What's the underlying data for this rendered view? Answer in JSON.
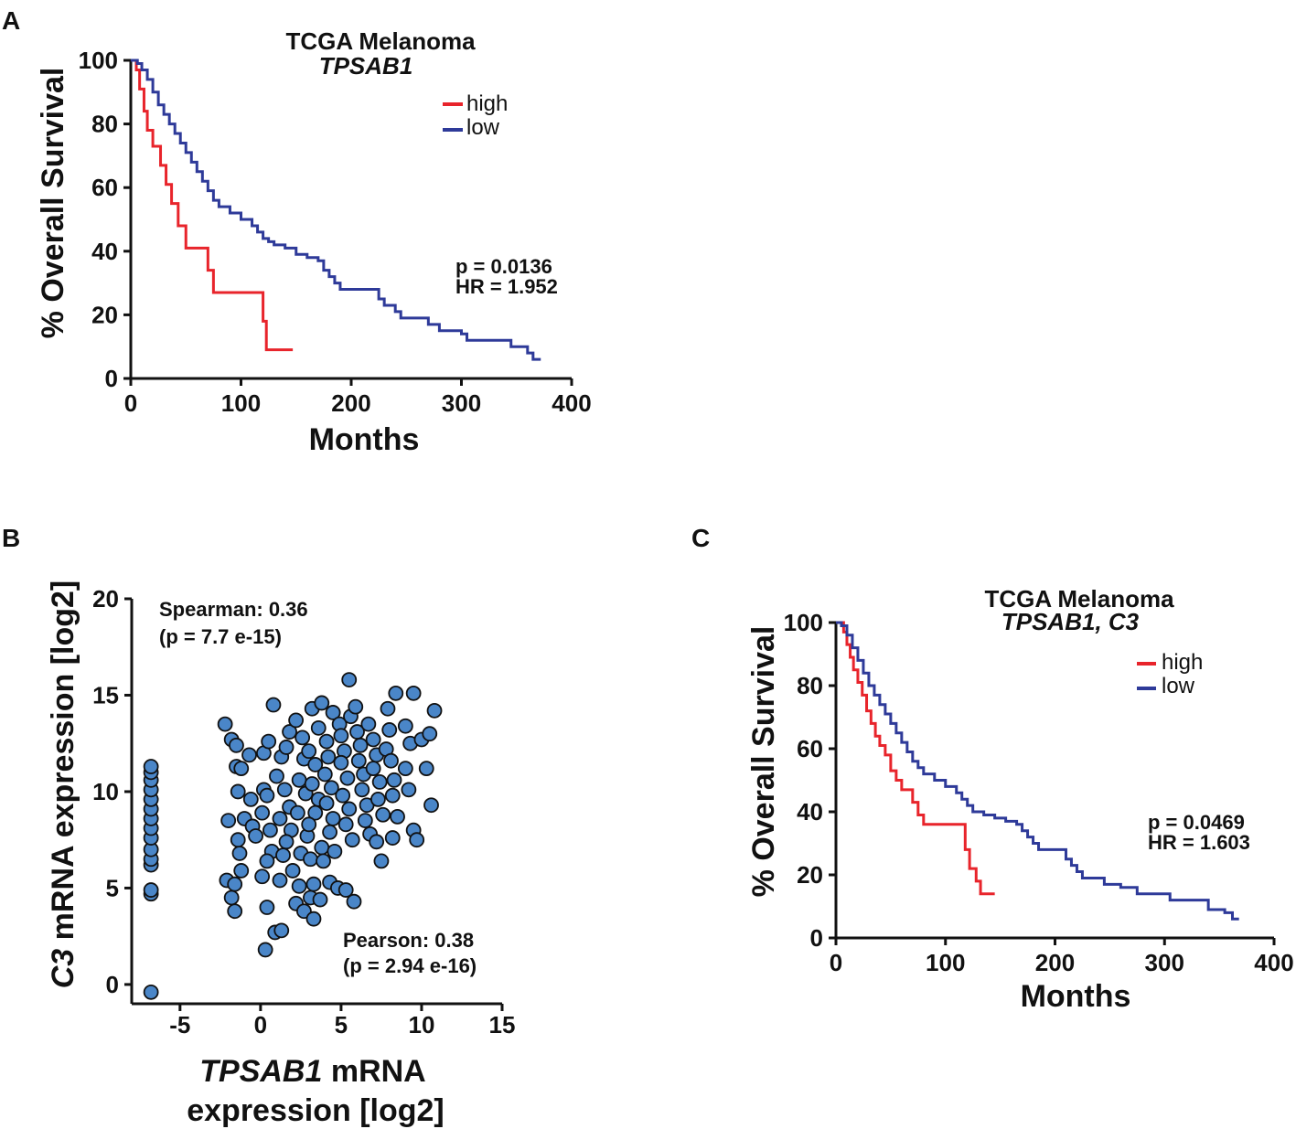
{
  "colors": {
    "high": "#e8242b",
    "low": "#2e3a99",
    "point_fill": "#4a86c8",
    "axis": "#111111"
  },
  "chart_data": [
    {
      "panel": "A",
      "type": "line",
      "subtype": "kaplan-meier",
      "title": "TCGA  Melanoma",
      "subtitle": "TPSAB1",
      "xlabel": "Months",
      "ylabel": "% Overall Survival",
      "xlim": [
        0,
        400
      ],
      "ylim": [
        0,
        100
      ],
      "xticks": [
        "0",
        "100",
        "200",
        "300",
        "400"
      ],
      "yticks": [
        "0",
        "20",
        "40",
        "60",
        "80",
        "100"
      ],
      "legend": [
        "high",
        "low"
      ],
      "stats": {
        "p": "p = 0.0136",
        "hr": "HR = 1.952"
      },
      "series": [
        {
          "name": "high",
          "points": [
            [
              0,
              100
            ],
            [
              3,
              100
            ],
            [
              5,
              97
            ],
            [
              8,
              91
            ],
            [
              12,
              84
            ],
            [
              15,
              78
            ],
            [
              20,
              73
            ],
            [
              27,
              67
            ],
            [
              32,
              61
            ],
            [
              37,
              55
            ],
            [
              43,
              48
            ],
            [
              50,
              41
            ],
            [
              65,
              41
            ],
            [
              70,
              34
            ],
            [
              75,
              27
            ],
            [
              118,
              27
            ],
            [
              120,
              18
            ],
            [
              123,
              9
            ],
            [
              147,
              9
            ]
          ]
        },
        {
          "name": "low",
          "points": [
            [
              0,
              100
            ],
            [
              6,
              99
            ],
            [
              10,
              97
            ],
            [
              15,
              94
            ],
            [
              20,
              90
            ],
            [
              25,
              86
            ],
            [
              30,
              83
            ],
            [
              35,
              80
            ],
            [
              40,
              77
            ],
            [
              45,
              74
            ],
            [
              50,
              71
            ],
            [
              55,
              68
            ],
            [
              60,
              65
            ],
            [
              65,
              62
            ],
            [
              70,
              59
            ],
            [
              75,
              56
            ],
            [
              80,
              54
            ],
            [
              90,
              52
            ],
            [
              100,
              50
            ],
            [
              110,
              48
            ],
            [
              115,
              46
            ],
            [
              120,
              44
            ],
            [
              125,
              43
            ],
            [
              130,
              42
            ],
            [
              140,
              41
            ],
            [
              150,
              39
            ],
            [
              160,
              38
            ],
            [
              170,
              37
            ],
            [
              175,
              34
            ],
            [
              180,
              32
            ],
            [
              185,
              30
            ],
            [
              190,
              28
            ],
            [
              220,
              28
            ],
            [
              225,
              25
            ],
            [
              230,
              23
            ],
            [
              240,
              21
            ],
            [
              245,
              19
            ],
            [
              260,
              19
            ],
            [
              270,
              17
            ],
            [
              280,
              15
            ],
            [
              300,
              14
            ],
            [
              305,
              12
            ],
            [
              340,
              12
            ],
            [
              345,
              10
            ],
            [
              360,
              8
            ],
            [
              365,
              6
            ],
            [
              372,
              6
            ]
          ]
        }
      ]
    },
    {
      "panel": "B",
      "type": "scatter",
      "xlabel_italic": "TPSAB1",
      "xlabel_rest": " mRNA",
      "xlabel_line2": "expression [log2]",
      "ylabel_italic": "C3",
      "ylabel_rest": " mRNA expression [log2]",
      "xlim": [
        -8,
        15
      ],
      "ylim": [
        -1,
        20
      ],
      "xticks": [
        "-5",
        "0",
        "5",
        "10",
        "15"
      ],
      "yticks": [
        "0",
        "5",
        "10",
        "15",
        "20"
      ],
      "spearman": "Spearman: 0.36",
      "spearman_p": "(p = 7.7 e-15)",
      "pearson": "Pearson: 0.38",
      "pearson_p": "(p = 2.94 e-16)",
      "points": [
        [
          -6.8,
          -0.4
        ],
        [
          -6.8,
          4.7
        ],
        [
          -6.8,
          4.9
        ],
        [
          -6.8,
          6.2
        ],
        [
          -6.8,
          6.5
        ],
        [
          -6.8,
          7.0
        ],
        [
          -6.8,
          7.6
        ],
        [
          -6.8,
          8.1
        ],
        [
          -6.8,
          8.6
        ],
        [
          -6.8,
          9.1
        ],
        [
          -6.8,
          9.6
        ],
        [
          -6.8,
          10.1
        ],
        [
          -6.8,
          10.6
        ],
        [
          -6.8,
          11.0
        ],
        [
          -6.8,
          11.3
        ],
        [
          -2.2,
          13.5
        ],
        [
          -1.8,
          12.7
        ],
        [
          -1.5,
          11.3
        ],
        [
          -2.0,
          8.5
        ],
        [
          -2.1,
          5.4
        ],
        [
          -1.6,
          5.2
        ],
        [
          -1.8,
          4.5
        ],
        [
          -1.6,
          3.8
        ],
        [
          -1.2,
          5.9
        ],
        [
          -1.3,
          6.8
        ],
        [
          -1.4,
          7.5
        ],
        [
          -1.0,
          8.6
        ],
        [
          -1.4,
          10.0
        ],
        [
          -1.2,
          11.2
        ],
        [
          -1.5,
          12.4
        ],
        [
          -0.7,
          11.9
        ],
        [
          -0.5,
          8.2
        ],
        [
          -0.3,
          7.7
        ],
        [
          -0.6,
          9.6
        ],
        [
          0.2,
          10.1
        ],
        [
          0.4,
          9.8
        ],
        [
          0.2,
          12.0
        ],
        [
          0.5,
          12.6
        ],
        [
          0.8,
          14.5
        ],
        [
          0.1,
          8.9
        ],
        [
          0.6,
          8.0
        ],
        [
          0.7,
          6.9
        ],
        [
          0.4,
          6.4
        ],
        [
          0.1,
          5.6
        ],
        [
          0.4,
          4.0
        ],
        [
          0.9,
          2.7
        ],
        [
          0.3,
          1.8
        ],
        [
          1.3,
          2.8
        ],
        [
          1.2,
          5.4
        ],
        [
          1.0,
          10.8
        ],
        [
          1.3,
          11.8
        ],
        [
          1.6,
          12.3
        ],
        [
          1.5,
          10.1
        ],
        [
          1.8,
          9.2
        ],
        [
          1.2,
          8.6
        ],
        [
          1.9,
          8.0
        ],
        [
          1.6,
          7.4
        ],
        [
          1.4,
          6.7
        ],
        [
          2.0,
          5.9
        ],
        [
          2.4,
          5.1
        ],
        [
          2.2,
          4.2
        ],
        [
          2.7,
          3.8
        ],
        [
          1.8,
          13.1
        ],
        [
          2.2,
          13.7
        ],
        [
          2.6,
          12.8
        ],
        [
          2.7,
          11.7
        ],
        [
          2.4,
          10.6
        ],
        [
          2.8,
          9.9
        ],
        [
          2.3,
          8.9
        ],
        [
          2.9,
          7.7
        ],
        [
          2.5,
          6.8
        ],
        [
          3.1,
          6.5
        ],
        [
          3.3,
          5.2
        ],
        [
          3.1,
          4.5
        ],
        [
          3.3,
          3.4
        ],
        [
          3.7,
          4.4
        ],
        [
          3.2,
          14.3
        ],
        [
          3.0,
          12.1
        ],
        [
          3.4,
          11.4
        ],
        [
          3.2,
          10.4
        ],
        [
          3.6,
          9.6
        ],
        [
          3.4,
          8.9
        ],
        [
          3.0,
          8.3
        ],
        [
          3.8,
          7.1
        ],
        [
          3.9,
          6.4
        ],
        [
          3.6,
          13.3
        ],
        [
          3.8,
          14.6
        ],
        [
          4.1,
          12.6
        ],
        [
          4.2,
          11.8
        ],
        [
          4.0,
          10.9
        ],
        [
          4.4,
          10.2
        ],
        [
          4.1,
          9.4
        ],
        [
          4.5,
          8.6
        ],
        [
          4.3,
          7.9
        ],
        [
          4.6,
          6.9
        ],
        [
          4.3,
          5.3
        ],
        [
          4.8,
          5.0
        ],
        [
          4.5,
          14.1
        ],
        [
          4.9,
          13.5
        ],
        [
          5.0,
          12.9
        ],
        [
          5.2,
          12.1
        ],
        [
          5.0,
          11.5
        ],
        [
          5.4,
          10.7
        ],
        [
          5.1,
          9.8
        ],
        [
          5.5,
          9.1
        ],
        [
          5.3,
          8.3
        ],
        [
          5.7,
          7.5
        ],
        [
          5.3,
          4.9
        ],
        [
          5.8,
          4.3
        ],
        [
          5.6,
          13.9
        ],
        [
          5.9,
          14.4
        ],
        [
          6.0,
          13.1
        ],
        [
          6.2,
          12.4
        ],
        [
          6.1,
          11.6
        ],
        [
          6.4,
          10.9
        ],
        [
          6.3,
          10.1
        ],
        [
          6.6,
          9.3
        ],
        [
          6.5,
          8.5
        ],
        [
          6.8,
          7.8
        ],
        [
          5.5,
          15.8
        ],
        [
          6.7,
          13.5
        ],
        [
          7.0,
          12.7
        ],
        [
          7.2,
          11.9
        ],
        [
          7.0,
          11.2
        ],
        [
          7.4,
          10.5
        ],
        [
          7.3,
          9.6
        ],
        [
          7.6,
          8.8
        ],
        [
          7.2,
          7.4
        ],
        [
          7.5,
          6.4
        ],
        [
          7.8,
          12.2
        ],
        [
          8.0,
          13.2
        ],
        [
          8.1,
          11.6
        ],
        [
          8.3,
          10.6
        ],
        [
          8.2,
          9.8
        ],
        [
          8.5,
          8.7
        ],
        [
          8.2,
          7.6
        ],
        [
          7.9,
          14.3
        ],
        [
          8.4,
          15.1
        ],
        [
          9.0,
          13.4
        ],
        [
          9.3,
          12.5
        ],
        [
          9.0,
          11.2
        ],
        [
          9.2,
          10.1
        ],
        [
          9.5,
          8.0
        ],
        [
          9.7,
          7.5
        ],
        [
          10.0,
          12.7
        ],
        [
          10.3,
          11.2
        ],
        [
          10.5,
          13.0
        ],
        [
          10.6,
          9.3
        ],
        [
          10.8,
          14.2
        ],
        [
          9.5,
          15.1
        ]
      ]
    },
    {
      "panel": "C",
      "type": "line",
      "subtype": "kaplan-meier",
      "title": "TCGA  Melanoma",
      "subtitle": "TPSAB1, C3",
      "xlabel": "Months",
      "ylabel": "% Overall Survival",
      "xlim": [
        0,
        400
      ],
      "ylim": [
        0,
        100
      ],
      "xticks": [
        "0",
        "100",
        "200",
        "300",
        "400"
      ],
      "yticks": [
        "0",
        "20",
        "40",
        "60",
        "80",
        "100"
      ],
      "legend": [
        "high",
        "low"
      ],
      "stats": {
        "p": "p = 0.0469",
        "hr": "HR = 1.603"
      },
      "series": [
        {
          "name": "high",
          "points": [
            [
              0,
              100
            ],
            [
              4,
              100
            ],
            [
              7,
              97
            ],
            [
              10,
              93
            ],
            [
              13,
              89
            ],
            [
              16,
              85
            ],
            [
              20,
              81
            ],
            [
              24,
              77
            ],
            [
              28,
              72
            ],
            [
              32,
              68
            ],
            [
              36,
              64
            ],
            [
              40,
              61
            ],
            [
              45,
              58
            ],
            [
              50,
              53
            ],
            [
              55,
              50
            ],
            [
              60,
              47
            ],
            [
              65,
              47
            ],
            [
              70,
              43
            ],
            [
              75,
              39
            ],
            [
              80,
              36
            ],
            [
              115,
              36
            ],
            [
              118,
              28
            ],
            [
              122,
              22
            ],
            [
              128,
              18
            ],
            [
              132,
              14
            ],
            [
              145,
              14
            ]
          ]
        },
        {
          "name": "low",
          "points": [
            [
              0,
              100
            ],
            [
              5,
              99
            ],
            [
              10,
              96
            ],
            [
              15,
              92
            ],
            [
              20,
              88
            ],
            [
              25,
              84
            ],
            [
              30,
              80
            ],
            [
              35,
              77
            ],
            [
              40,
              74
            ],
            [
              45,
              71
            ],
            [
              50,
              68
            ],
            [
              55,
              65
            ],
            [
              60,
              62
            ],
            [
              65,
              59
            ],
            [
              70,
              56
            ],
            [
              75,
              54
            ],
            [
              80,
              52
            ],
            [
              90,
              50
            ],
            [
              100,
              48
            ],
            [
              110,
              46
            ],
            [
              115,
              44
            ],
            [
              120,
              42
            ],
            [
              125,
              40
            ],
            [
              135,
              39
            ],
            [
              145,
              38
            ],
            [
              155,
              37
            ],
            [
              165,
              36
            ],
            [
              170,
              34
            ],
            [
              175,
              32
            ],
            [
              180,
              30
            ],
            [
              185,
              28
            ],
            [
              205,
              28
            ],
            [
              210,
              25
            ],
            [
              215,
              23
            ],
            [
              220,
              21
            ],
            [
              225,
              19
            ],
            [
              240,
              19
            ],
            [
              245,
              17
            ],
            [
              260,
              16
            ],
            [
              275,
              14
            ],
            [
              300,
              14
            ],
            [
              305,
              12
            ],
            [
              335,
              12
            ],
            [
              340,
              9
            ],
            [
              355,
              8
            ],
            [
              362,
              6
            ],
            [
              368,
              6
            ]
          ]
        }
      ]
    }
  ],
  "panels": {
    "a": "A",
    "b": "B",
    "c": "C"
  }
}
